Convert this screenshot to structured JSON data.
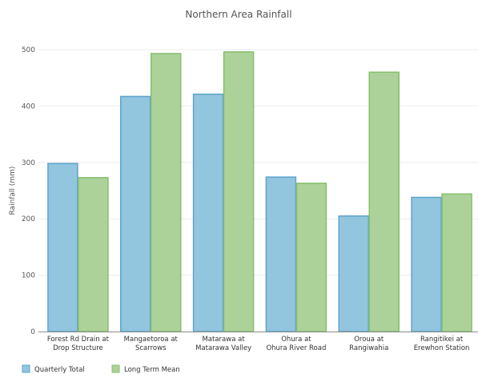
{
  "chart_data": {
    "type": "bar",
    "title": "Northern Area Rainfall",
    "xlabel": "",
    "ylabel": "Rainfall (mm)",
    "ylim": [
      0,
      500
    ],
    "yticks": [
      0,
      100,
      200,
      300,
      400,
      500
    ],
    "grid": true,
    "legend_position": "bottom-left",
    "categories": [
      [
        "Forest Rd Drain at",
        "Drop Structure"
      ],
      [
        "Mangaetoroa at",
        "Scarrows"
      ],
      [
        "Matarawa at",
        "Matarawa Valley"
      ],
      [
        "Ohura at",
        "Ohura River Road"
      ],
      [
        "Oroua at",
        "Rangiwahia"
      ],
      [
        "Rangitikei at",
        "Erewhon Station"
      ]
    ],
    "series": [
      {
        "name": "Quarterly Total",
        "color": "#92c5de",
        "stroke": "#5ea3cc",
        "values": [
          298,
          417,
          421,
          274,
          205,
          238
        ]
      },
      {
        "name": "Long Term Mean",
        "color": "#acd29a",
        "stroke": "#86bf6c",
        "values": [
          273,
          493,
          496,
          263,
          460,
          244
        ]
      }
    ]
  }
}
